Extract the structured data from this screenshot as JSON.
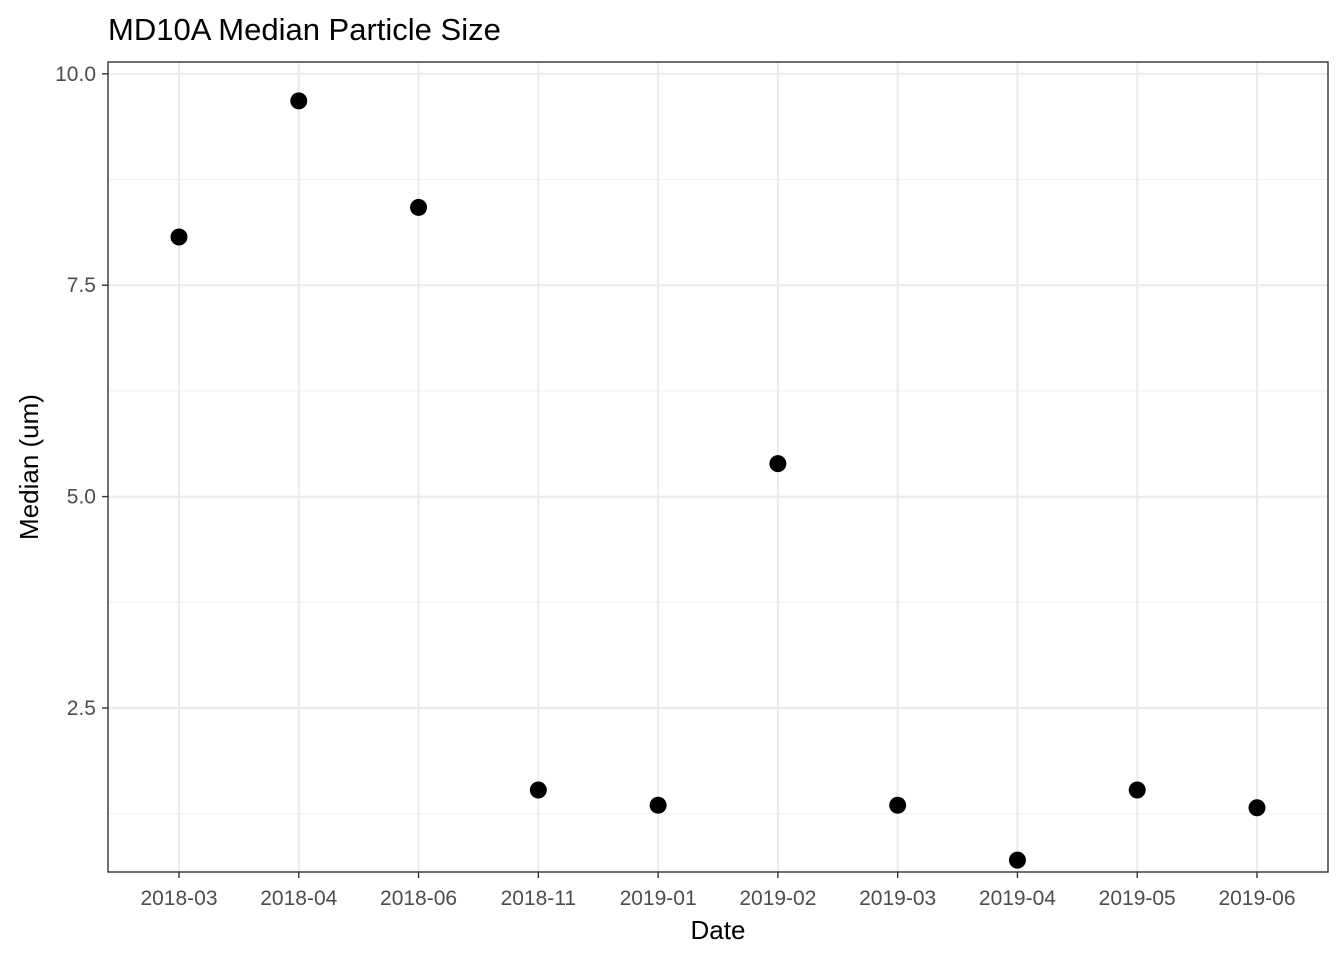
{
  "chart_data": {
    "type": "scatter",
    "title": "MD10A Median Particle Size",
    "xlabel": "Date",
    "ylabel": "Median (um)",
    "x_scale": "discrete",
    "categories": [
      "2018-03",
      "2018-04",
      "2018-06",
      "2018-11",
      "2019-01",
      "2019-02",
      "2019-03",
      "2019-04",
      "2019-05",
      "2019-06"
    ],
    "values": [
      8.07,
      9.68,
      8.42,
      1.53,
      1.35,
      5.39,
      1.35,
      0.7,
      1.53,
      1.32
    ],
    "ylim": [
      0.56,
      10.14
    ],
    "y_ticks": [
      2.5,
      5.0,
      7.5,
      10.0
    ],
    "y_tick_labels": [
      "2.5",
      "5.0",
      "7.5",
      "10.0"
    ],
    "y_minor_ticks": [
      1.25,
      3.75,
      6.25,
      8.75
    ],
    "grid": true,
    "legend": "none",
    "point_color": "#000000"
  }
}
